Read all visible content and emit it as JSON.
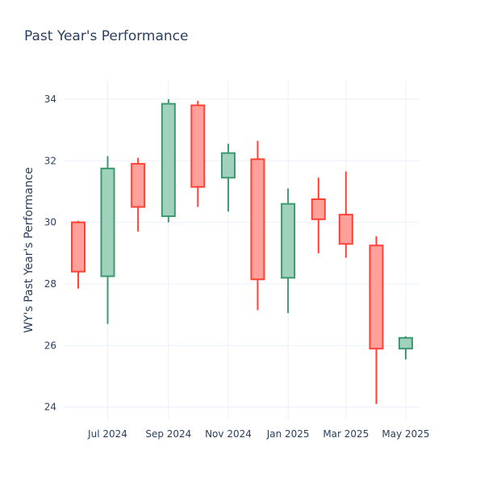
{
  "chart_data": {
    "type": "candlestick",
    "title": "Past Year's Performance",
    "xlabel": "",
    "ylabel": "WY's Past Year's Performance",
    "ylim": [
      23.6,
      34.6
    ],
    "yticks": [
      24,
      26,
      28,
      30,
      32,
      34
    ],
    "x_tick_labels": [
      {
        "date": "2024-07-01",
        "label": "Jul 2024"
      },
      {
        "date": "2024-09-01",
        "label": "Sep 2024"
      },
      {
        "date": "2024-11-01",
        "label": "Nov 2024"
      },
      {
        "date": "2025-01-01",
        "label": "Jan 2025"
      },
      {
        "date": "2025-03-01",
        "label": "Mar 2025"
      },
      {
        "date": "2025-05-01",
        "label": "May 2025"
      }
    ],
    "xlim": [
      "2024-05-18",
      "2025-05-15"
    ],
    "candles": [
      {
        "date": "2024-06-01",
        "open": 30.0,
        "high": 30.05,
        "low": 27.85,
        "close": 28.4
      },
      {
        "date": "2024-07-01",
        "open": 28.25,
        "high": 32.15,
        "low": 26.7,
        "close": 31.75
      },
      {
        "date": "2024-08-01",
        "open": 31.9,
        "high": 32.1,
        "low": 29.7,
        "close": 30.5
      },
      {
        "date": "2024-09-01",
        "open": 30.2,
        "high": 34.0,
        "low": 30.0,
        "close": 33.85
      },
      {
        "date": "2024-10-01",
        "open": 33.8,
        "high": 33.95,
        "low": 30.5,
        "close": 31.15
      },
      {
        "date": "2024-11-01",
        "open": 31.45,
        "high": 32.55,
        "low": 30.35,
        "close": 32.25
      },
      {
        "date": "2024-12-01",
        "open": 32.05,
        "high": 32.65,
        "low": 27.15,
        "close": 28.15
      },
      {
        "date": "2025-01-01",
        "open": 28.2,
        "high": 31.1,
        "low": 27.05,
        "close": 30.6
      },
      {
        "date": "2025-02-01",
        "open": 30.75,
        "high": 31.45,
        "low": 29.0,
        "close": 30.1
      },
      {
        "date": "2025-03-01",
        "open": 30.25,
        "high": 31.65,
        "low": 28.85,
        "close": 29.3
      },
      {
        "date": "2025-04-01",
        "open": 29.25,
        "high": 29.55,
        "low": 24.1,
        "close": 25.9
      },
      {
        "date": "2025-05-01",
        "open": 25.9,
        "high": 26.3,
        "low": 25.55,
        "close": 26.25
      }
    ],
    "colors": {
      "increasing_line": "#3d9970",
      "increasing_fill": "#9fd1bc",
      "decreasing_line": "#ff4136",
      "decreasing_fill": "#ffa09b",
      "grid": "#ebf0f8",
      "text": "#2a3f5f"
    },
    "grid": true
  }
}
